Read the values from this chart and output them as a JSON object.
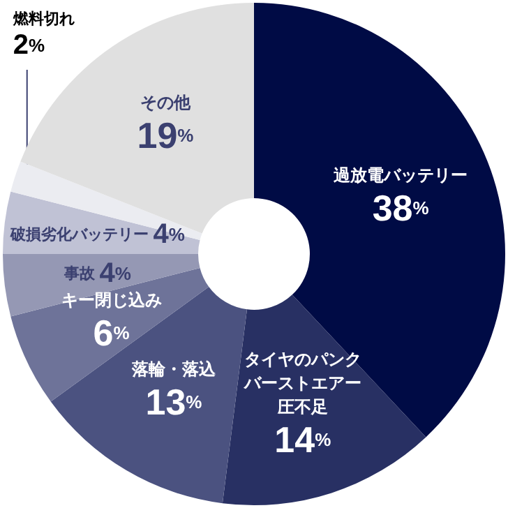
{
  "chart_data": {
    "type": "donut",
    "categories": [
      "過放電バッテリー",
      "タイヤのパンクバーストエアー圧不足",
      "落輪・落込",
      "キー閉じ込み",
      "事故",
      "破損劣化バッテリー",
      "燃料切れ",
      "その他"
    ],
    "values": [
      38,
      14,
      13,
      6,
      4,
      4,
      2,
      19
    ],
    "colors": [
      "#000b45",
      "#283063",
      "#4b5280",
      "#6e7399",
      "#9598b4",
      "#c0c2d5",
      "#ebecf1",
      "#e0e0e0"
    ],
    "value_labels": [
      "38%",
      "14%",
      "13%",
      "6%",
      "4%",
      "4%",
      "2%",
      "19%"
    ],
    "legend": false
  }
}
